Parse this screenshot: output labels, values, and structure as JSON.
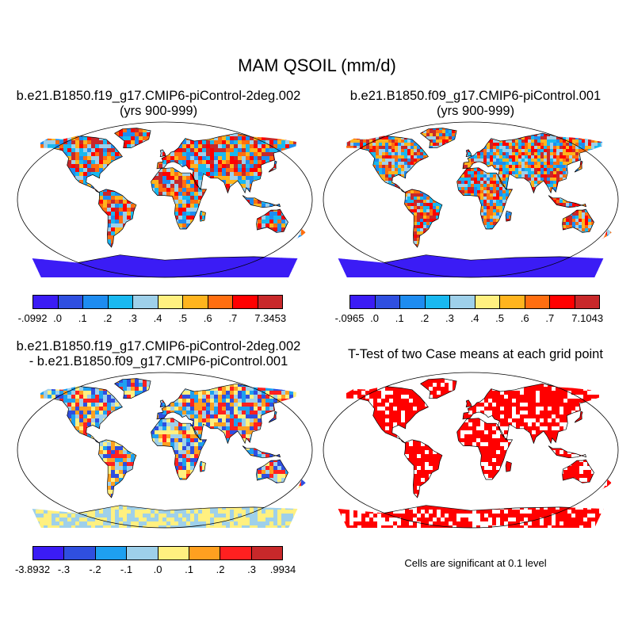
{
  "figure_title": "MAM QSOIL (mm/d)",
  "panels": {
    "top_left": {
      "title_line1": "b.e21.B1850.f19_g17.CMIP6-piControl-2deg.002",
      "title_line2": "(yrs 900-999)"
    },
    "top_right": {
      "title_line1": "b.e21.B1850.f09_g17.CMIP6-piControl.001",
      "title_line2": "(yrs 900-999)"
    },
    "bottom_left": {
      "title_line1": "b.e21.B1850.f19_g17.CMIP6-piControl-2deg.002",
      "title_line2": "- b.e21.B1850.f09_g17.CMIP6-piControl.001"
    },
    "bottom_right": {
      "title_line1": "T-Test of two Case means at each grid point"
    }
  },
  "colorbars": {
    "top_left": {
      "colors": [
        "#3b1cf5",
        "#2f4fe0",
        "#1e8cf0",
        "#19b8f0",
        "#9ed0ea",
        "#fff080",
        "#ffb41e",
        "#ff6e10",
        "#ff0000",
        "#c8282a"
      ],
      "labels": [
        "-.0992",
        ".0",
        ".1",
        ".2",
        ".3",
        ".4",
        ".5",
        ".6",
        ".7",
        "7.3453"
      ]
    },
    "top_right": {
      "colors": [
        "#3b1cf5",
        "#2f4fe0",
        "#1e8cf0",
        "#19b8f0",
        "#9ed0ea",
        "#fff080",
        "#ffb41e",
        "#ff6e10",
        "#ff0000",
        "#c8282a"
      ],
      "labels": [
        "-.0965",
        ".0",
        ".1",
        ".2",
        ".3",
        ".4",
        ".5",
        ".6",
        ".7",
        "7.1043"
      ]
    },
    "bottom_left": {
      "colors": [
        "#3b1cf5",
        "#2f4fe0",
        "#1ea0f0",
        "#9ed0ea",
        "#fff080",
        "#ffa020",
        "#ff2020",
        "#c8282a"
      ],
      "labels": [
        "-3.8932",
        "-.3",
        "-.2",
        "-.1",
        ".0",
        ".1",
        ".2",
        ".3",
        ".9934"
      ]
    }
  },
  "significance_note": "Cells are significant at 0.1 level",
  "map_colors": {
    "ocean": "#ffffff",
    "outline": "#000000",
    "top_left_land": [
      "#ff6e10",
      "#ff0000",
      "#19b8f0",
      "#9ed0ea",
      "#ffb41e",
      "#c8282a",
      "#1e8cf0"
    ],
    "top_right_land": [
      "#ff6e10",
      "#ff0000",
      "#19b8f0",
      "#9ed0ea",
      "#ffb41e",
      "#c8282a",
      "#1e8cf0"
    ],
    "bottom_left_land": [
      "#fff080",
      "#9ed0ea",
      "#1ea0f0",
      "#ffa020",
      "#2f4fe0",
      "#ff2020"
    ],
    "bottom_right_land": [
      "#ff0000",
      "#ffffff"
    ],
    "antarctica": [
      "#3b1cf5",
      "#3b1cf5",
      "#fff080",
      "#ff0000"
    ]
  }
}
